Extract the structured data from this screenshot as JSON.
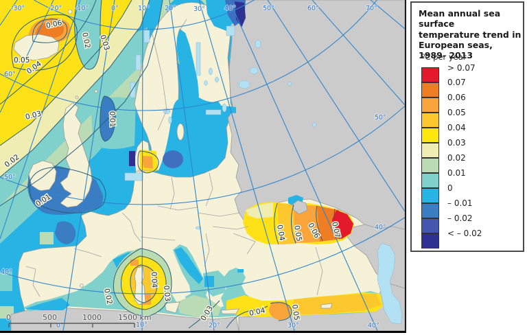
{
  "legend": {
    "title_lines": [
      "Mean annual sea surface",
      "temperature trend in",
      "European seas,",
      "1989- 2013"
    ],
    "unit": "ºC per year",
    "top_label": "> 0.07",
    "classes": [
      {
        "color": "#e41a2c",
        "boundary": "0.07"
      },
      {
        "color": "#ef7d24",
        "boundary": "0.06"
      },
      {
        "color": "#f9a53b",
        "boundary": "0.05"
      },
      {
        "color": "#fdc72e",
        "boundary": "0.04"
      },
      {
        "color": "#ffe60d",
        "boundary": "0.03"
      },
      {
        "color": "#efedb2",
        "boundary": "0.02"
      },
      {
        "color": "#b9dcb4",
        "boundary": "0.01"
      },
      {
        "color": "#80d0cc",
        "boundary": "0"
      },
      {
        "color": "#27b3e4",
        "boundary": "– 0.01"
      },
      {
        "color": "#3a7dc2",
        "boundary": "– 0.02"
      },
      {
        "color": "#4456b0",
        "boundary": "< – 0.02"
      },
      {
        "color": "#2e3192",
        "boundary": ""
      }
    ]
  },
  "map": {
    "graticule": {
      "top": [
        {
          "t": "-30°"
        },
        {
          "t": "-20°"
        },
        {
          "t": "-10°"
        },
        {
          "t": "0°"
        },
        {
          "t": "10°"
        },
        {
          "t": "20°"
        },
        {
          "t": "30°"
        },
        {
          "t": "40°"
        },
        {
          "t": "50°"
        },
        {
          "t": "60°"
        },
        {
          "t": "70°"
        }
      ],
      "bottom": [
        {
          "t": "0°"
        },
        {
          "t": "10°"
        },
        {
          "t": "20°"
        },
        {
          "t": "30°"
        },
        {
          "t": "40°"
        }
      ],
      "left": [
        {
          "t": "60°"
        },
        {
          "t": "50°"
        },
        {
          "t": "40°"
        }
      ],
      "right": [
        {
          "t": "50°"
        },
        {
          "t": "40°"
        }
      ]
    },
    "contours": [
      {
        "t": "0.06"
      },
      {
        "t": "0.05"
      },
      {
        "t": "0.04"
      },
      {
        "t": "0.02"
      },
      {
        "t": "0.03"
      },
      {
        "t": "0.03"
      },
      {
        "t": "0.02"
      },
      {
        "t": "0.01"
      },
      {
        "t": "0.01"
      },
      {
        "t": "0.02"
      },
      {
        "t": "0.04"
      },
      {
        "t": "0.03"
      },
      {
        "t": "0.03"
      },
      {
        "t": "0.04"
      },
      {
        "t": "0.05"
      },
      {
        "t": "0.04"
      },
      {
        "t": "0.05"
      },
      {
        "t": "0.06"
      },
      {
        "t": "0.07"
      }
    ],
    "scalebar": {
      "labels": [
        "0",
        "500",
        "1000",
        "1500 km"
      ]
    }
  }
}
